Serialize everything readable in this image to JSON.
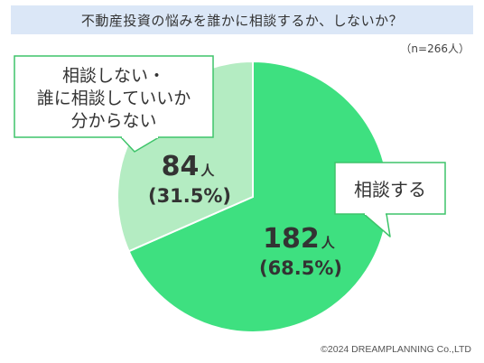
{
  "title": "不動産投資の悩みを誰かに相談するか、しないか？",
  "sample_size": "（n=266人）",
  "copyright": "©2024 DREAMPLANNING Co.,LTD",
  "colors": {
    "title_bg": "#dbe7f7",
    "consult": "#3ee080",
    "not_consult": "#b4ecc2",
    "label_border": "#3ec46a"
  },
  "chart_data": {
    "type": "pie",
    "title": "不動産投資の悩みを誰かに相談するか、しないか？",
    "total_label": "（n=266人）",
    "unit": "人",
    "slices": [
      {
        "label": "相談する",
        "label_lines": [
          "相談する"
        ],
        "value": 182,
        "value_text": "182",
        "percent": 68.5,
        "percent_text": "(68.5%)",
        "color": "#3ee080"
      },
      {
        "label": "相談しない・誰に相談していいか分からない",
        "label_lines": [
          "相談しない・",
          "誰に相談していいか",
          "分からない"
        ],
        "value": 84,
        "value_text": "84",
        "percent": 31.5,
        "percent_text": "(31.5%)",
        "color": "#b4ecc2"
      }
    ]
  }
}
